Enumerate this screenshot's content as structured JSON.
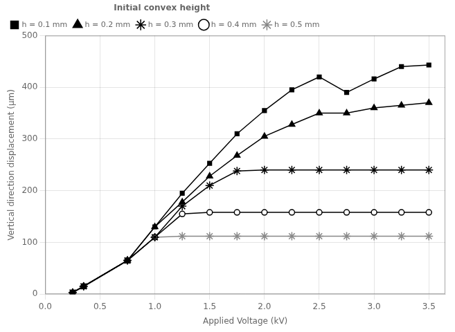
{
  "chart_data": {
    "type": "line",
    "xlabel": "Applied Voltage (kV)",
    "ylabel": "Vertical direction displacement (μm)",
    "legend_title": "Initial convex height",
    "legend": "upper left",
    "grid": true,
    "xlim": [
      0.0,
      3.65
    ],
    "ylim": [
      0,
      500
    ],
    "xticks": [
      {
        "value": 0,
        "label": "0.0"
      },
      0.5,
      {
        "value": 1,
        "label": "1.0"
      },
      1.5,
      {
        "value": 2,
        "label": "2.0"
      },
      2.5,
      {
        "value": 3,
        "label": "3.0"
      },
      3.5
    ],
    "yticks": [
      0,
      100,
      200,
      300,
      400,
      500
    ],
    "x": [
      0.25,
      0.35,
      0.75,
      1.0,
      1.25,
      1.5,
      1.75,
      2.0,
      2.25,
      2.5,
      2.75,
      3.0,
      3.25,
      3.5
    ],
    "series": [
      {
        "name": "h = 0.1 mm",
        "color": "black",
        "marker": "square",
        "values": [
          3,
          15,
          65,
          130,
          195,
          253,
          310,
          355,
          395,
          420,
          390,
          416,
          440,
          443
        ]
      },
      {
        "name": "h = 0.2 mm",
        "color": "black",
        "marker": "triangle",
        "values": [
          3,
          15,
          65,
          130,
          178,
          228,
          268,
          305,
          328,
          350,
          350,
          360,
          365,
          370
        ]
      },
      {
        "name": "h = 0.3 mm",
        "color": "black",
        "marker": "star",
        "values": [
          3,
          15,
          65,
          110,
          170,
          210,
          238,
          240,
          240,
          240,
          240,
          240,
          240,
          240
        ]
      },
      {
        "name": "h = 0.4 mm",
        "color": "black",
        "marker": "open_circle",
        "values": [
          3,
          15,
          65,
          110,
          155,
          158,
          158,
          158,
          158,
          158,
          158,
          158,
          158,
          158
        ]
      },
      {
        "name": "h = 0.5 mm",
        "color": "#888888",
        "marker": "star",
        "values": [
          3,
          15,
          65,
          110,
          112,
          112,
          112,
          112,
          112,
          112,
          112,
          112,
          112,
          112
        ]
      }
    ]
  }
}
